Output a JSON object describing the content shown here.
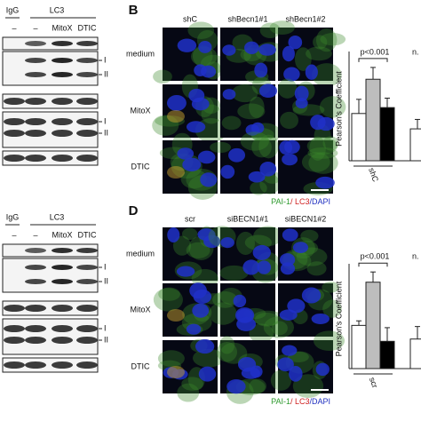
{
  "panel_a": {
    "igg": "IgG",
    "lc3": "LC3",
    "lanes": [
      "–",
      "–",
      "MitoX",
      "DTIC"
    ],
    "band_labels": [
      "I",
      "II"
    ]
  },
  "panel_c": {
    "igg": "IgG",
    "lc3": "LC3",
    "lanes": [
      "–",
      "–",
      "MitoX",
      "DTIC"
    ],
    "band_labels": [
      "I",
      "II"
    ]
  },
  "panel_b": {
    "letter": "B",
    "columns": [
      "shC",
      "shBecn1#1",
      "shBecn1#2"
    ],
    "rows": [
      "medium",
      "MitoX",
      "DTIC"
    ],
    "caption": [
      "PAI-1",
      "/ LC3",
      "/DAPI"
    ]
  },
  "panel_d": {
    "letter": "D",
    "columns": [
      "scr",
      "siBECN1#1",
      "siBECN1#2"
    ],
    "rows": [
      "medium",
      "MitoX",
      "DTIC"
    ],
    "caption": [
      "PAI-1",
      "/ LC3",
      "/DAPI"
    ]
  },
  "chart_data": [
    {
      "type": "bar",
      "y_label": "Pearson's Coefficient",
      "group_label": "shC",
      "annotations": [
        "p<0.001",
        "n."
      ],
      "values": [
        0.4,
        0.69,
        0.45,
        0.27
      ],
      "errors": [
        0.12,
        0.1,
        0.08,
        0.08
      ],
      "colors": [
        "#ffffff",
        "#bdbdbd",
        "#000000",
        "#ffffff"
      ],
      "ylim": [
        0,
        1
      ]
    },
    {
      "type": "bar",
      "y_label": "Pearson's Coefficient",
      "group_label": "scr",
      "annotations": [
        "p<0.001",
        "n."
      ],
      "values": [
        0.38,
        0.76,
        0.24,
        0.26
      ],
      "errors": [
        0.04,
        0.09,
        0.12,
        0.11
      ],
      "colors": [
        "#ffffff",
        "#bdbdbd",
        "#000000",
        "#ffffff"
      ],
      "ylim": [
        0,
        1
      ]
    }
  ]
}
